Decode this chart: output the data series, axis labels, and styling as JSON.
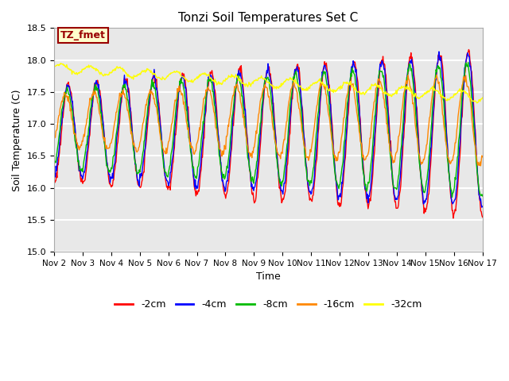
{
  "title": "Tonzi Soil Temperatures Set C",
  "xlabel": "Time",
  "ylabel": "Soil Temperature (C)",
  "annotation_label": "TZ_fmet",
  "annotation_bg": "#FFFFCC",
  "annotation_border": "#990000",
  "ylim": [
    15.0,
    18.5
  ],
  "x_tick_labels": [
    "Nov 2",
    "Nov 3",
    "Nov 4",
    "Nov 5",
    "Nov 6",
    "Nov 7",
    "Nov 8",
    "Nov 9",
    "Nov 10",
    "Nov 11",
    "Nov 12",
    "Nov 13",
    "Nov 14",
    "Nov 15",
    "Nov 16",
    "Nov 17"
  ],
  "legend_entries": [
    "-2cm",
    "-4cm",
    "-8cm",
    "-16cm",
    "-32cm"
  ],
  "line_colors": [
    "#FF0000",
    "#0000FF",
    "#00BB00",
    "#FF8800",
    "#FFFF00"
  ],
  "plot_bg": "#E8E8E8",
  "grid_color": "#FFFFFF"
}
